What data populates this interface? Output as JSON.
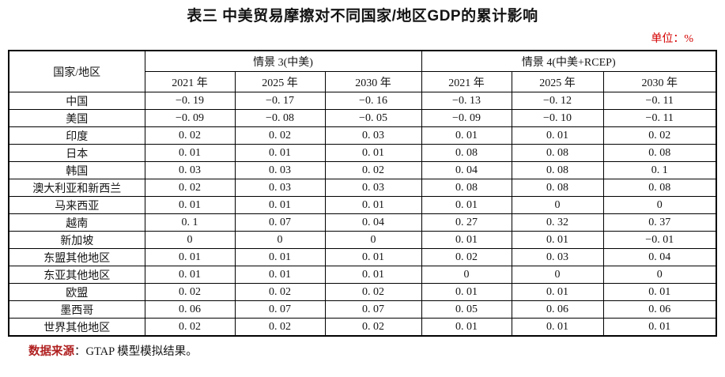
{
  "page": {
    "title": "表三 中美贸易摩擦对不同国家/地区GDP的累计影响",
    "unit_note": "单位：%"
  },
  "colors": {
    "unit_note": "#d40000",
    "source_label": "#b02020",
    "border": "#000000",
    "background": "#ffffff"
  },
  "table": {
    "corner_header": "国家/地区",
    "groups": [
      {
        "label": "情景 3(中美)",
        "years": [
          "2021 年",
          "2025 年",
          "2030 年"
        ]
      },
      {
        "label": "情景 4(中美+RCEP)",
        "years": [
          "2021 年",
          "2025 年",
          "2030 年"
        ]
      }
    ],
    "rows": [
      {
        "region": "中国",
        "values": [
          "−0. 19",
          "−0. 17",
          "−0. 16",
          "−0. 13",
          "−0. 12",
          "−0. 11"
        ]
      },
      {
        "region": "美国",
        "values": [
          "−0. 09",
          "−0. 08",
          "−0. 05",
          "−0. 09",
          "−0. 10",
          "−0. 11"
        ]
      },
      {
        "region": "印度",
        "values": [
          "0. 02",
          "0. 02",
          "0. 03",
          "0. 01",
          "0. 01",
          "0. 02"
        ]
      },
      {
        "region": "日本",
        "values": [
          "0. 01",
          "0. 01",
          "0. 01",
          "0. 08",
          "0. 08",
          "0. 08"
        ]
      },
      {
        "region": "韩国",
        "values": [
          "0. 03",
          "0. 03",
          "0. 02",
          "0. 04",
          "0. 08",
          "0. 1"
        ]
      },
      {
        "region": "澳大利亚和新西兰",
        "values": [
          "0. 02",
          "0. 03",
          "0. 03",
          "0. 08",
          "0. 08",
          "0. 08"
        ]
      },
      {
        "region": "马来西亚",
        "values": [
          "0. 01",
          "0. 01",
          "0. 01",
          "0. 01",
          "0",
          "0"
        ]
      },
      {
        "region": "越南",
        "values": [
          "0. 1",
          "0. 07",
          "0. 04",
          "0. 27",
          "0. 32",
          "0. 37"
        ]
      },
      {
        "region": "新加坡",
        "values": [
          "0",
          "0",
          "0",
          "0. 01",
          "0. 01",
          "−0. 01"
        ]
      },
      {
        "region": "东盟其他地区",
        "values": [
          "0. 01",
          "0. 01",
          "0. 01",
          "0. 02",
          "0. 03",
          "0. 04"
        ]
      },
      {
        "region": "东亚其他地区",
        "values": [
          "0. 01",
          "0. 01",
          "0. 01",
          "0",
          "0",
          "0"
        ]
      },
      {
        "region": "欧盟",
        "values": [
          "0. 02",
          "0. 02",
          "0. 02",
          "0. 01",
          "0. 01",
          "0. 01"
        ]
      },
      {
        "region": "墨西哥",
        "values": [
          "0. 06",
          "0. 07",
          "0. 07",
          "0. 05",
          "0. 06",
          "0. 06"
        ]
      },
      {
        "region": "世界其他地区",
        "values": [
          "0. 02",
          "0. 02",
          "0. 02",
          "0. 01",
          "0. 01",
          "0. 01"
        ]
      }
    ]
  },
  "footer": {
    "source_label": "数据来源",
    "source_text": "：GTAP 模型模拟结果。"
  },
  "chart_data": {
    "type": "table",
    "title": "表三 中美贸易摩擦对不同国家/地区GDP的累计影响",
    "unit": "%",
    "categories": [
      "中国",
      "美国",
      "印度",
      "日本",
      "韩国",
      "澳大利亚和新西兰",
      "马来西亚",
      "越南",
      "新加坡",
      "东盟其他地区",
      "东亚其他地区",
      "欧盟",
      "墨西哥",
      "世界其他地区"
    ],
    "series": [
      {
        "name": "情景3(中美) 2021年",
        "values": [
          -0.19,
          -0.09,
          0.02,
          0.01,
          0.03,
          0.02,
          0.01,
          0.1,
          0,
          0.01,
          0.01,
          0.02,
          0.06,
          0.02
        ]
      },
      {
        "name": "情景3(中美) 2025年",
        "values": [
          -0.17,
          -0.08,
          0.02,
          0.01,
          0.03,
          0.03,
          0.01,
          0.07,
          0,
          0.01,
          0.01,
          0.02,
          0.07,
          0.02
        ]
      },
      {
        "name": "情景3(中美) 2030年",
        "values": [
          -0.16,
          -0.05,
          0.03,
          0.01,
          0.02,
          0.03,
          0.01,
          0.04,
          0,
          0.01,
          0.01,
          0.02,
          0.07,
          0.02
        ]
      },
      {
        "name": "情景4(中美+RCEP) 2021年",
        "values": [
          -0.13,
          -0.09,
          0.01,
          0.08,
          0.04,
          0.08,
          0.01,
          0.27,
          0.01,
          0.02,
          0,
          0.01,
          0.05,
          0.01
        ]
      },
      {
        "name": "情景4(中美+RCEP) 2025年",
        "values": [
          -0.12,
          -0.1,
          0.01,
          0.08,
          0.08,
          0.08,
          0,
          0.32,
          0.01,
          0.03,
          0,
          0.01,
          0.06,
          0.01
        ]
      },
      {
        "name": "情景4(中美+RCEP) 2030年",
        "values": [
          -0.11,
          -0.11,
          0.02,
          0.08,
          0.1,
          0.08,
          0,
          0.37,
          -0.01,
          0.04,
          0,
          0.01,
          0.06,
          0.01
        ]
      }
    ]
  }
}
